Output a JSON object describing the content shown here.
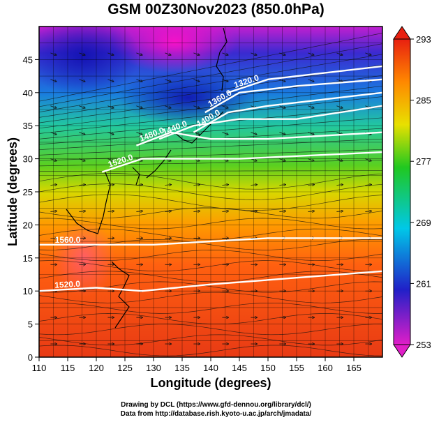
{
  "title": "GSM 00Z30Nov2023 (850.0hPa)",
  "xlabel": "Longitude (degrees)",
  "ylabel": "Latitude  (degrees)",
  "credits": [
    "Drawing by DCL (https://www.gfd-dennou.org/library/dcl/)",
    "Data from http://database.rish.kyoto-u.ac.jp/arch/jmadata/"
  ],
  "chart_data": {
    "type": "heatmap",
    "xlim": [
      110,
      170
    ],
    "ylim": [
      0,
      50
    ],
    "x_ticks": [
      110,
      115,
      120,
      125,
      130,
      135,
      140,
      145,
      150,
      155,
      160,
      165
    ],
    "y_ticks": [
      0,
      5,
      10,
      15,
      20,
      25,
      30,
      35,
      40,
      45
    ],
    "grid": true,
    "colorbar": {
      "min": 253,
      "max": 293,
      "ticks": [
        253,
        261,
        269,
        277,
        285,
        293
      ],
      "colors": [
        "#e01ec8",
        "#2020c8",
        "#00c8e8",
        "#20c820",
        "#e8e000",
        "#ff8800",
        "#e82010"
      ]
    },
    "contours": [
      {
        "label": "1320.0",
        "points": [
          [
            143,
            40
          ],
          [
            150,
            42
          ],
          [
            160,
            43
          ],
          [
            170,
            44
          ]
        ]
      },
      {
        "label": "1360.0",
        "points": [
          [
            139,
            37
          ],
          [
            145,
            40
          ],
          [
            155,
            41
          ],
          [
            170,
            42
          ]
        ]
      },
      {
        "label": "1400.0",
        "points": [
          [
            137,
            34
          ],
          [
            143,
            37
          ],
          [
            150,
            38
          ],
          [
            160,
            39
          ],
          [
            170,
            40
          ]
        ]
      },
      {
        "label": "1440.0",
        "points": [
          [
            131,
            33
          ],
          [
            137,
            35
          ],
          [
            145,
            36
          ],
          [
            155,
            36
          ],
          [
            170,
            38
          ]
        ]
      },
      {
        "label": "1480.0",
        "points": [
          [
            127,
            32
          ],
          [
            133,
            34
          ],
          [
            140,
            33
          ],
          [
            150,
            33
          ],
          [
            170,
            34
          ]
        ]
      },
      {
        "label": "1520.0",
        "points": [
          [
            121,
            28
          ],
          [
            128,
            30
          ],
          [
            135,
            30
          ],
          [
            145,
            30
          ],
          [
            170,
            31
          ]
        ]
      },
      {
        "label": "1560.0",
        "points": [
          [
            110,
            17
          ],
          [
            120,
            17
          ],
          [
            130,
            17
          ],
          [
            140,
            17.5
          ],
          [
            150,
            18
          ],
          [
            170,
            18
          ]
        ]
      },
      {
        "label": "1520.0",
        "points": [
          [
            110,
            10
          ],
          [
            120,
            10.5
          ],
          [
            128,
            10
          ],
          [
            140,
            11
          ],
          [
            155,
            12
          ],
          [
            170,
            13
          ]
        ]
      }
    ]
  }
}
